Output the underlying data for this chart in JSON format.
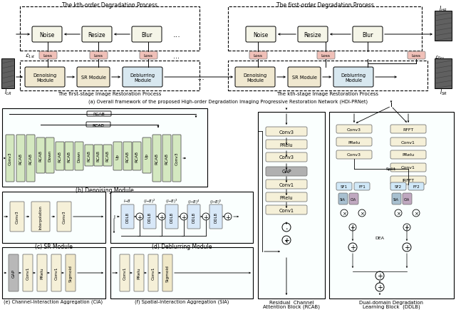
{
  "bg_color": "#ffffff",
  "title_top": "(a) Overall framework of the proposed High-order Degradation Imaging Progressive Restoration Network (HDI-PRNet)",
  "fig_width": 6.4,
  "fig_height": 4.6,
  "L_1st": "$\\mathcal{L}_{1st}$",
  "L_Rec": "$\\mathcal{L}_{Rec}$",
  "I_LR": "$I_{LR}$",
  "I_HR": "$I_{HR}$",
  "I_SR": "$I_{SR}$"
}
